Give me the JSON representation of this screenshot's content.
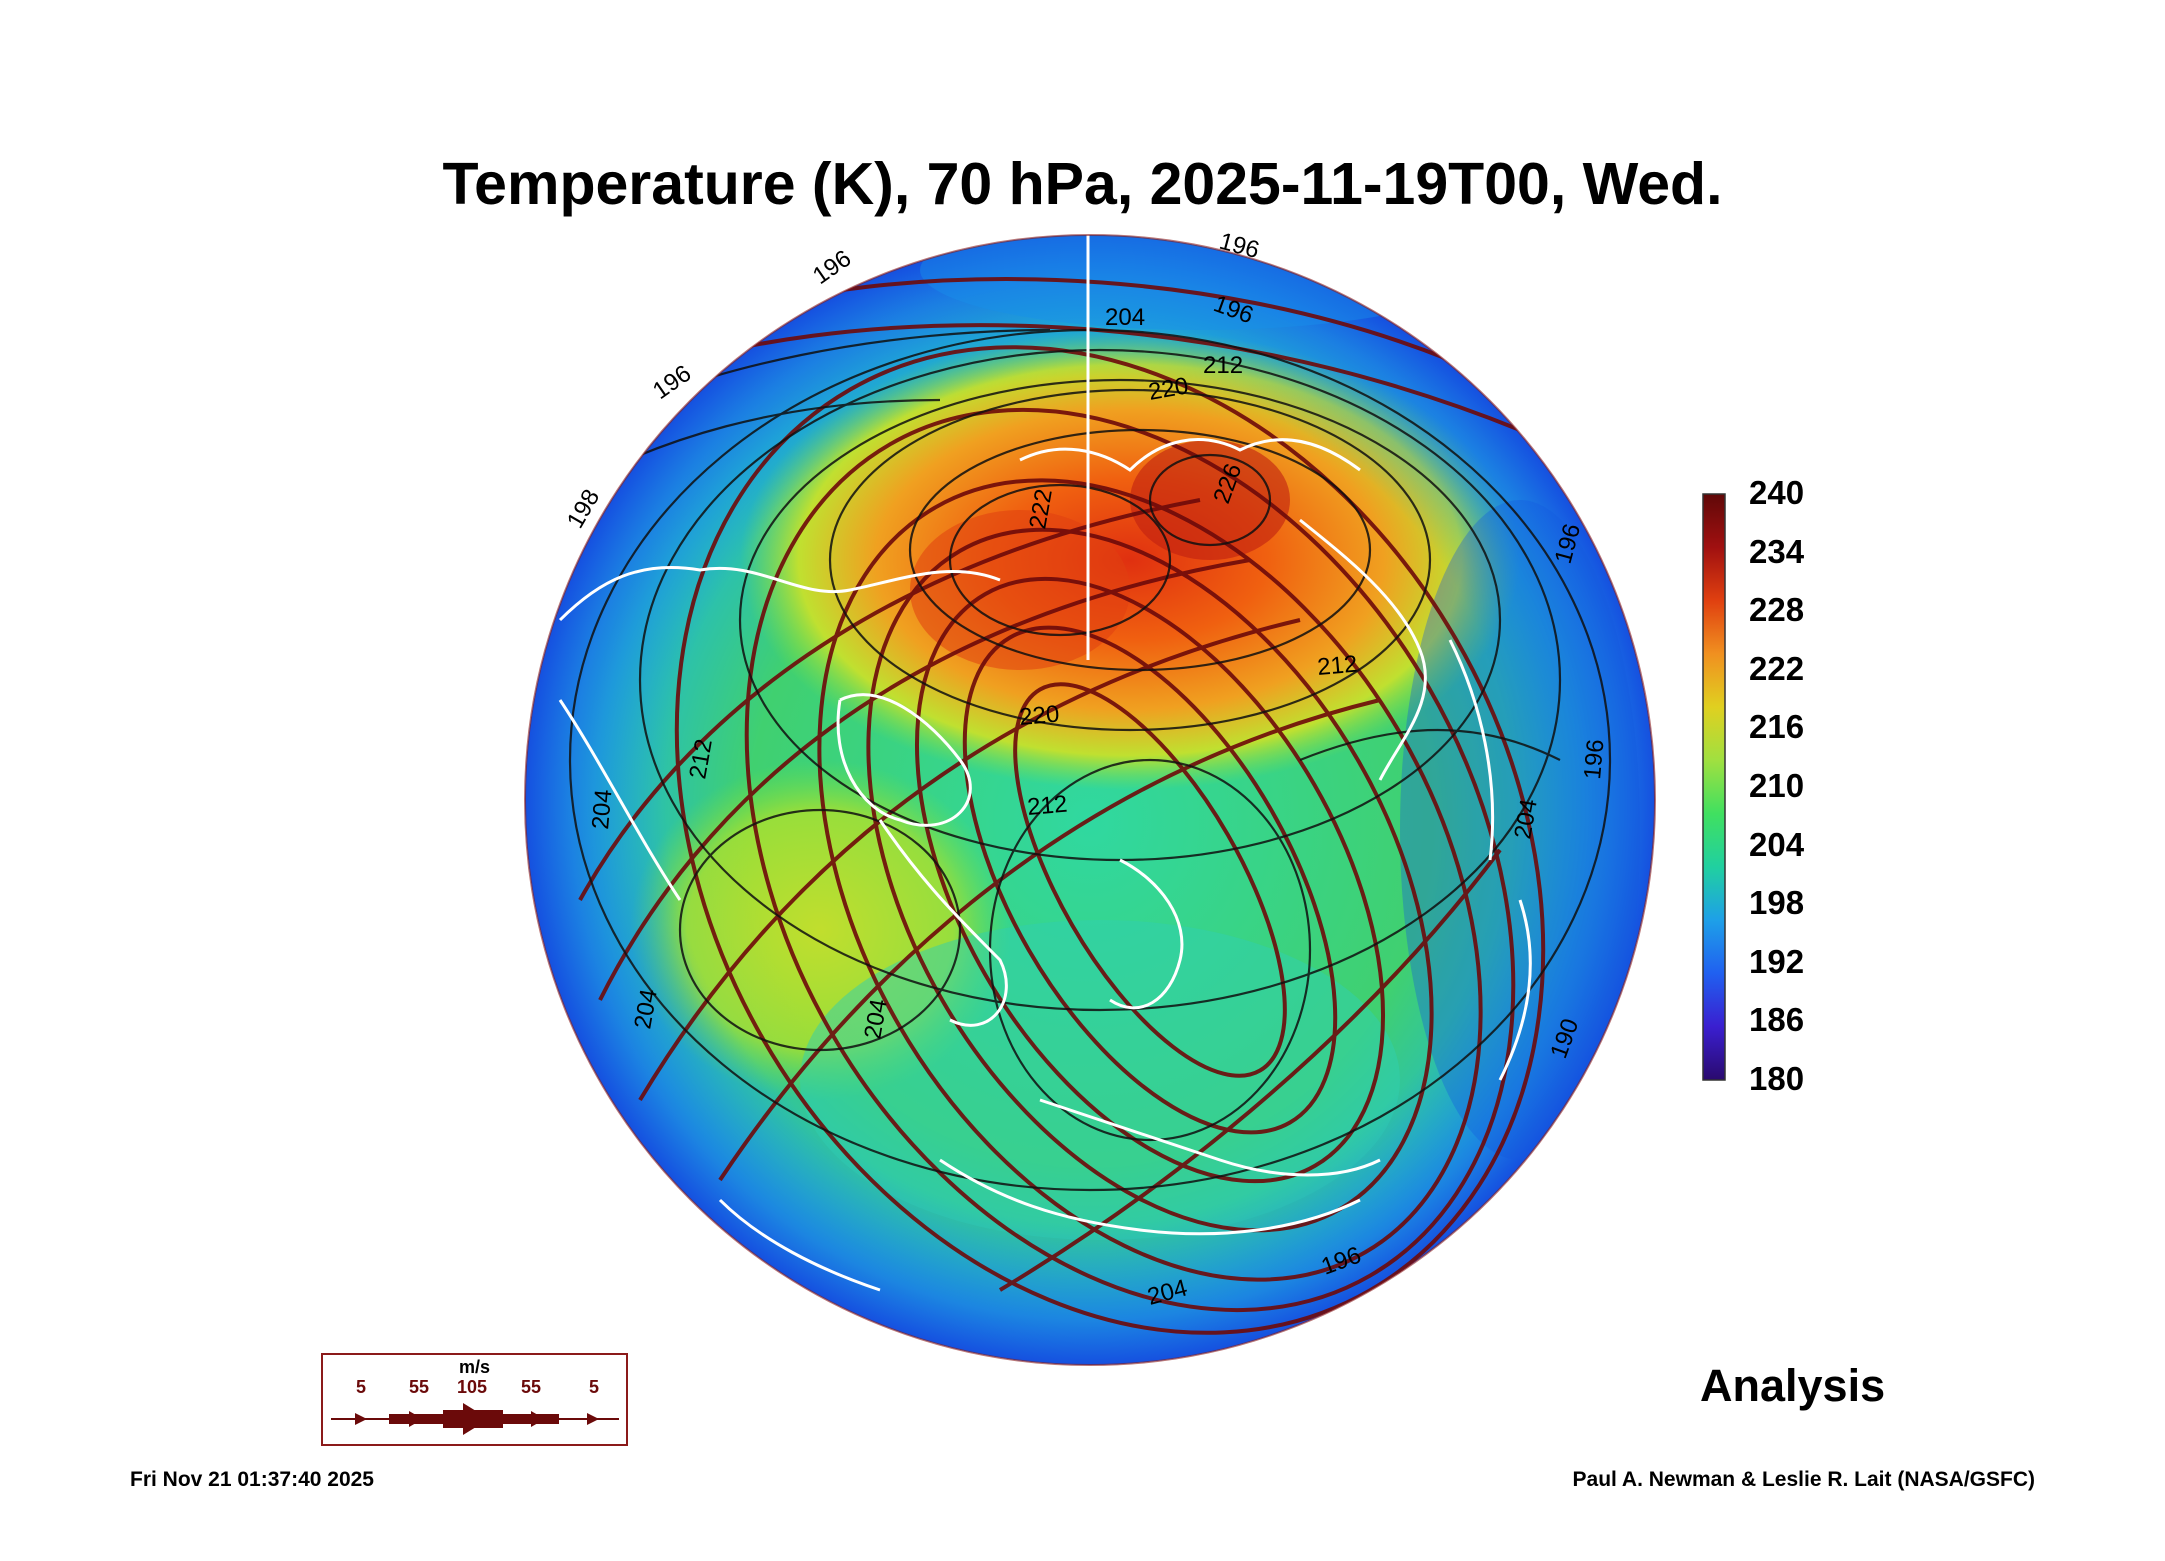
{
  "title": "Temperature (K), 70 hPa, 2025-11-19T00, Wed.",
  "colorbar": {
    "ticks": [
      "240",
      "234",
      "228",
      "222",
      "216",
      "210",
      "204",
      "198",
      "192",
      "186",
      "180"
    ],
    "min": 180,
    "max": 240,
    "colors": [
      "#2a0a6e",
      "#3a1fd0",
      "#2060f0",
      "#1ea0e8",
      "#20d0a0",
      "#40e060",
      "#a0e040",
      "#e0d020",
      "#f09020",
      "#e04010",
      "#a01010",
      "#600808"
    ]
  },
  "contour_labels": [
    "196",
    "196",
    "196",
    "196",
    "198",
    "204",
    "204",
    "212",
    "220",
    "222",
    "226",
    "212",
    "220",
    "212",
    "204",
    "196",
    "196",
    "204",
    "190",
    "196",
    "212",
    "204",
    "204"
  ],
  "wind_legend": {
    "unit": "m/s",
    "speeds": [
      "5",
      "55",
      "105",
      "55",
      "5"
    ]
  },
  "analysis_label": "Analysis",
  "timestamp": "Fri Nov 21 01:37:40 2025",
  "credit": "Paul A. Newman & Leslie R. Lait (NASA/GSFC)"
}
